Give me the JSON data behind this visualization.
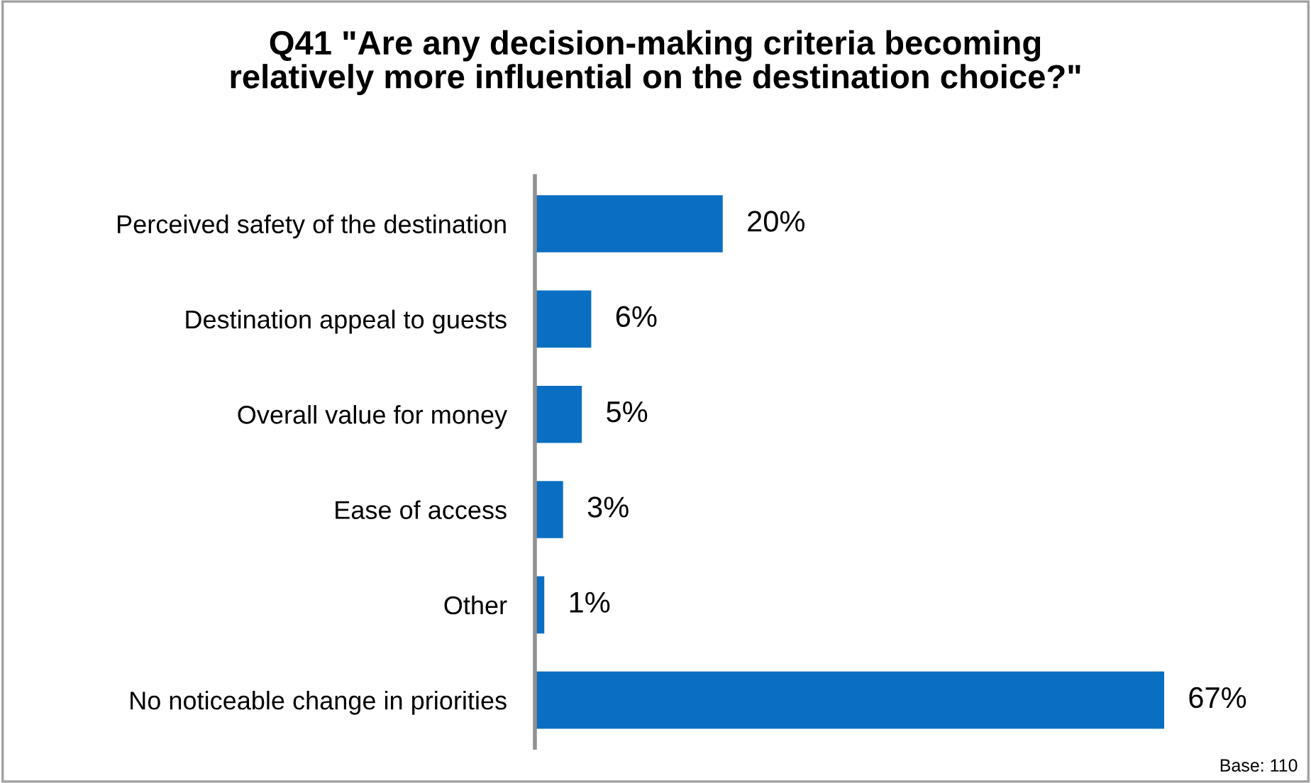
{
  "chart_data": {
    "type": "bar",
    "orientation": "horizontal",
    "title": "Q41 \"Are any decision-making criteria becoming\nrelatively more influential on the destination choice?\"",
    "categories": [
      "Perceived safety of the destination",
      "Destination appeal to guests",
      "Overall value for money",
      "Ease of access",
      "Other",
      "No noticeable change in priorities"
    ],
    "values": [
      20,
      6,
      5,
      3,
      1,
      67
    ],
    "value_labels": [
      "20%",
      "6%",
      "5%",
      "3%",
      "1%",
      "67%"
    ],
    "color": "#0a6fc2",
    "tick_labels": "y",
    "grid": false,
    "legend": false,
    "annotations": [
      "Base: 110"
    ]
  }
}
